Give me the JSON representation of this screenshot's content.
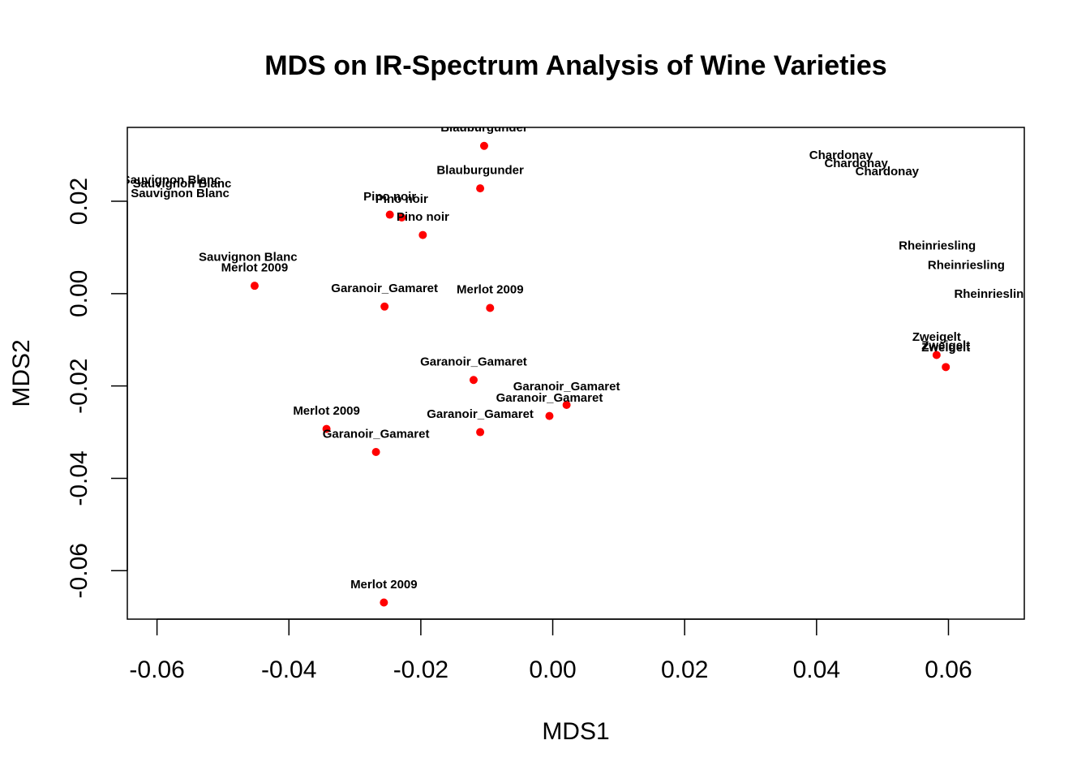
{
  "chart_data": {
    "type": "scatter",
    "title": "MDS on IR-Spectrum Analysis of Wine Varieties",
    "xlabel": "MDS1",
    "ylabel": "MDS2",
    "xlim": [
      -0.0645,
      0.0715
    ],
    "ylim": [
      -0.0705,
      0.036
    ],
    "xticks": [
      -0.06,
      -0.04,
      -0.02,
      0.0,
      0.02,
      0.04,
      0.06
    ],
    "xtick_labels": [
      "-0.06",
      "-0.04",
      "-0.02",
      "0.00",
      "0.02",
      "0.04",
      "0.06"
    ],
    "yticks": [
      -0.06,
      -0.04,
      -0.02,
      0.0,
      0.02
    ],
    "ytick_labels": [
      "-0.06",
      "-0.04",
      "-0.02",
      "0.00",
      "0.02"
    ],
    "point_color": "#ff0000",
    "grid": false,
    "points": [
      {
        "x": -0.0104,
        "y": 0.032,
        "label": "Blauburgunder"
      },
      {
        "x": -0.011,
        "y": 0.0228,
        "label": "Blauburgunder"
      },
      {
        "x": -0.0247,
        "y": 0.0171,
        "label": "Pino noir"
      },
      {
        "x": -0.0229,
        "y": 0.0165,
        "label": "Pino noir"
      },
      {
        "x": -0.0197,
        "y": 0.0127,
        "label": "Pino noir"
      },
      {
        "x": -0.0452,
        "y": 0.0017,
        "label": "Merlot 2009"
      },
      {
        "x": -0.0255,
        "y": -0.0028,
        "label": "Garanoir_Gamaret"
      },
      {
        "x": -0.0095,
        "y": -0.0031,
        "label": "Merlot 2009"
      },
      {
        "x": -0.012,
        "y": -0.0187,
        "label": "Garanoir_Gamaret"
      },
      {
        "x": 0.0021,
        "y": -0.0241,
        "label": "Garanoir_Gamaret"
      },
      {
        "x": -0.0005,
        "y": -0.0265,
        "label": "Garanoir_Gamaret"
      },
      {
        "x": -0.011,
        "y": -0.03,
        "label": "Garanoir_Gamaret"
      },
      {
        "x": -0.0343,
        "y": -0.0293,
        "label": "Merlot 2009"
      },
      {
        "x": -0.0268,
        "y": -0.0343,
        "label": "Garanoir_Gamaret"
      },
      {
        "x": -0.0256,
        "y": -0.0669,
        "label": "Merlot 2009"
      },
      {
        "x": 0.0582,
        "y": -0.0133,
        "label": "Zweigelt"
      },
      {
        "x": 0.0596,
        "y": -0.0159,
        "label": "Zweigelt"
      }
    ],
    "text_labels": [
      {
        "x": -0.0104,
        "y": 0.036,
        "text": "Blauburgunder"
      },
      {
        "x": -0.011,
        "y": 0.0268,
        "text": "Blauburgunder"
      },
      {
        "x": -0.0247,
        "y": 0.0211,
        "text": "Pino noir"
      },
      {
        "x": -0.0229,
        "y": 0.0205,
        "text": "Pino noir"
      },
      {
        "x": -0.0197,
        "y": 0.0167,
        "text": "Pino noir"
      },
      {
        "x": -0.0578,
        "y": 0.0247,
        "text": "Sauvignon Blanc"
      },
      {
        "x": -0.0562,
        "y": 0.0239,
        "text": "Sauvignon Blanc"
      },
      {
        "x": -0.0565,
        "y": 0.0218,
        "text": "Sauvignon Blanc"
      },
      {
        "x": -0.0462,
        "y": 0.008,
        "text": "Sauvignon Blanc"
      },
      {
        "x": -0.0452,
        "y": 0.0057,
        "text": "Merlot 2009"
      },
      {
        "x": -0.0255,
        "y": 0.0012,
        "text": "Garanoir_Gamaret"
      },
      {
        "x": -0.0095,
        "y": 0.0009,
        "text": "Merlot 2009"
      },
      {
        "x": -0.012,
        "y": -0.0147,
        "text": "Garanoir_Gamaret"
      },
      {
        "x": 0.0021,
        "y": -0.0201,
        "text": "Garanoir_Gamaret"
      },
      {
        "x": -0.0005,
        "y": -0.0225,
        "text": "Garanoir_Gamaret"
      },
      {
        "x": -0.011,
        "y": -0.026,
        "text": "Garanoir_Gamaret"
      },
      {
        "x": -0.0343,
        "y": -0.0253,
        "text": "Merlot 2009"
      },
      {
        "x": -0.0268,
        "y": -0.0303,
        "text": "Garanoir_Gamaret"
      },
      {
        "x": -0.0256,
        "y": -0.0629,
        "text": "Merlot 2009"
      },
      {
        "x": 0.0437,
        "y": 0.03,
        "text": "Chardonay"
      },
      {
        "x": 0.046,
        "y": 0.0283,
        "text": "Chardonay"
      },
      {
        "x": 0.0507,
        "y": 0.0265,
        "text": "Chardonay"
      },
      {
        "x": 0.0583,
        "y": 0.0104,
        "text": "Rheinriesling"
      },
      {
        "x": 0.0627,
        "y": 0.0062,
        "text": "Rheinriesling"
      },
      {
        "x": 0.0667,
        "y": 0.0,
        "text": "Rheinriesling"
      },
      {
        "x": 0.0582,
        "y": -0.0093,
        "text": "Zweigelt"
      },
      {
        "x": 0.0596,
        "y": -0.0112,
        "text": "Zweigelt"
      },
      {
        "x": 0.0596,
        "y": -0.0116,
        "text": "Zweigelt"
      }
    ]
  }
}
